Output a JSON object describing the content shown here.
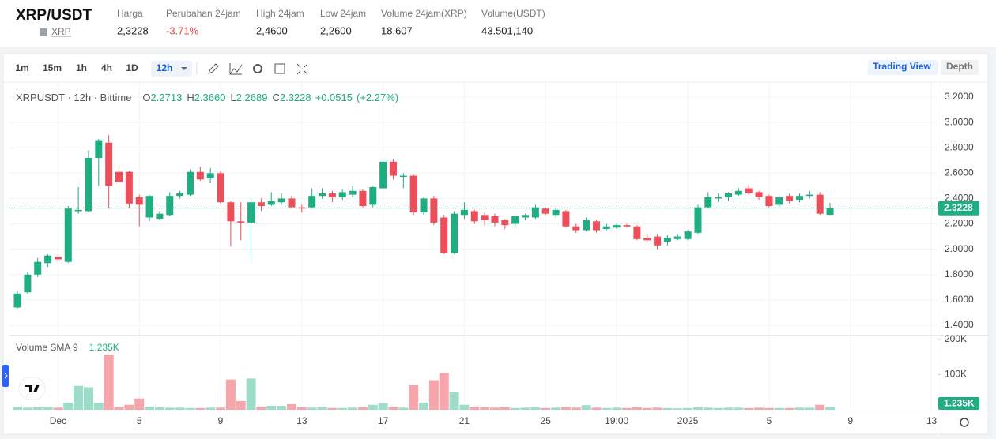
{
  "header": {
    "symbol": "XRP/USDT",
    "asset": "XRP",
    "stats": [
      {
        "label": "Harga",
        "value": "2,3228"
      },
      {
        "label": "Perubahan 24jam",
        "value": "-3.71%"
      },
      {
        "label": "High 24jam",
        "value": "2,4600"
      },
      {
        "label": "Low 24jam",
        "value": "2,2600"
      },
      {
        "label": "Volume 24jam(XRP)",
        "value": "18.607"
      },
      {
        "label": "Volume(USDT)",
        "value": "43.501,140"
      }
    ]
  },
  "toolbar": {
    "intervals": [
      "1m",
      "15m",
      "1h",
      "4h",
      "1D",
      "12h"
    ],
    "views": [
      "Trading View",
      "Depth"
    ]
  },
  "chart_data": [
    {
      "type": "candlestick",
      "title": "XRPUSDT · 12h · Bittime",
      "legend": [
        {
          "label": "O",
          "value": "2.2713"
        },
        {
          "label": "H",
          "value": "2.3660"
        },
        {
          "label": "L",
          "value": "2.2689"
        },
        {
          "label": "C",
          "value": "2.3228"
        },
        {
          "label": "",
          "value": "+0.0515"
        },
        {
          "label": "",
          "value": "(+2.27%)"
        }
      ],
      "up_color": "#1fae82",
      "down_color": "#ee4d5a",
      "categories": [
        null,
        null,
        null,
        null,
        "Dec",
        null,
        null,
        null,
        null,
        null,
        null,
        null,
        "5",
        null,
        null,
        null,
        null,
        null,
        null,
        null,
        "9",
        null,
        null,
        null,
        null,
        null,
        null,
        null,
        "13",
        null,
        null,
        null,
        null,
        null,
        null,
        null,
        "17",
        null,
        null,
        null,
        null,
        null,
        null,
        null,
        "21",
        null,
        null,
        null,
        null,
        null,
        null,
        null,
        "25",
        null,
        null,
        null,
        null,
        null,
        null,
        "19:00",
        null,
        null,
        null,
        null,
        null,
        null,
        "2025",
        null,
        null,
        null,
        null,
        null,
        null,
        null,
        "5",
        null,
        null,
        null,
        null,
        null,
        null,
        null,
        "9",
        null,
        null,
        null,
        null,
        null,
        null,
        null,
        "13"
      ],
      "open": [
        1.54,
        1.66,
        1.8,
        1.89,
        1.94,
        1.9,
        2.3,
        2.3,
        2.72,
        2.84,
        2.61,
        2.61,
        2.41,
        2.25,
        2.24,
        2.27,
        2.42,
        2.43,
        2.61,
        2.56,
        2.6,
        2.37,
        2.22,
        2.21,
        2.37,
        2.35,
        2.37,
        2.4,
        2.33,
        2.33,
        2.42,
        2.44,
        2.41,
        2.43,
        2.46,
        2.35,
        2.48,
        2.69,
        2.57,
        2.58,
        2.29,
        2.4,
        2.25,
        1.97,
        2.27,
        2.3,
        2.27,
        2.26,
        2.23,
        2.2,
        2.25,
        2.25,
        2.32,
        2.27,
        2.3,
        2.18,
        2.15,
        2.22,
        2.16,
        2.17,
        2.19,
        2.18,
        2.09,
        2.1,
        2.06,
        2.08,
        2.08,
        2.13,
        2.33,
        2.4,
        2.41,
        2.43,
        2.48,
        2.45,
        2.42,
        2.35,
        2.42,
        2.39,
        2.42,
        2.43,
        2.2713,
        null,
        null,
        null,
        null,
        null,
        null,
        null,
        null,
        null,
        null
      ],
      "high": [
        1.67,
        1.82,
        1.93,
        1.96,
        1.96,
        2.34,
        2.49,
        2.78,
        2.87,
        2.9,
        2.67,
        2.62,
        2.43,
        2.43,
        2.3,
        2.45,
        2.46,
        2.63,
        2.65,
        2.64,
        2.62,
        2.38,
        2.37,
        2.4,
        2.4,
        2.45,
        2.44,
        2.42,
        2.35,
        2.48,
        2.48,
        2.46,
        2.47,
        2.5,
        2.47,
        2.5,
        2.71,
        2.71,
        2.6,
        2.59,
        2.41,
        2.42,
        2.27,
        2.3,
        2.37,
        2.31,
        2.29,
        2.28,
        2.24,
        2.27,
        2.28,
        2.35,
        2.33,
        2.33,
        2.31,
        2.2,
        2.25,
        2.23,
        2.2,
        2.2,
        2.2,
        2.19,
        2.12,
        2.12,
        2.11,
        2.12,
        2.15,
        2.35,
        2.45,
        2.44,
        2.45,
        2.48,
        2.51,
        2.46,
        2.43,
        2.42,
        2.44,
        2.44,
        2.46,
        2.45,
        2.366,
        null,
        null,
        null,
        null,
        null,
        null,
        null,
        null,
        null,
        null
      ],
      "low": [
        1.53,
        1.65,
        1.78,
        1.86,
        1.9,
        1.89,
        2.28,
        2.29,
        2.5,
        2.32,
        2.52,
        2.32,
        2.18,
        2.22,
        2.23,
        2.26,
        2.4,
        2.42,
        2.54,
        2.52,
        2.36,
        2.02,
        2.07,
        1.91,
        2.3,
        2.34,
        2.35,
        2.32,
        2.29,
        2.32,
        2.4,
        2.37,
        2.39,
        2.41,
        2.33,
        2.33,
        2.47,
        2.55,
        2.48,
        2.27,
        2.27,
        2.19,
        1.96,
        1.96,
        2.24,
        2.2,
        2.19,
        2.18,
        2.16,
        2.16,
        2.23,
        2.24,
        2.27,
        2.25,
        2.17,
        2.13,
        2.14,
        2.13,
        2.15,
        2.16,
        2.17,
        2.07,
        2.05,
        2.0,
        2.03,
        2.07,
        2.07,
        2.12,
        2.32,
        2.37,
        2.38,
        2.42,
        2.43,
        2.39,
        2.33,
        2.33,
        2.36,
        2.37,
        2.4,
        2.27,
        2.2689,
        null,
        null,
        null,
        null,
        null,
        null,
        null,
        null,
        null,
        null
      ],
      "close": [
        1.65,
        1.8,
        1.9,
        1.95,
        1.92,
        2.32,
        2.31,
        2.72,
        2.86,
        2.5,
        2.53,
        2.36,
        2.35,
        2.42,
        2.28,
        2.42,
        2.44,
        2.61,
        2.55,
        2.6,
        2.37,
        2.22,
        2.21,
        2.37,
        2.34,
        2.38,
        2.4,
        2.33,
        2.32,
        2.42,
        2.44,
        2.41,
        2.45,
        2.46,
        2.34,
        2.49,
        2.69,
        2.58,
        2.58,
        2.29,
        2.4,
        2.21,
        1.97,
        2.28,
        2.31,
        2.22,
        2.23,
        2.21,
        2.19,
        2.26,
        2.27,
        2.33,
        2.28,
        2.31,
        2.18,
        2.15,
        2.23,
        2.15,
        2.18,
        2.19,
        2.18,
        2.08,
        2.07,
        2.03,
        2.09,
        2.1,
        2.14,
        2.33,
        2.41,
        2.41,
        2.44,
        2.46,
        2.44,
        2.41,
        2.34,
        2.41,
        2.38,
        2.42,
        2.43,
        2.28,
        2.3228,
        null,
        null,
        null,
        null,
        null,
        null,
        null,
        null,
        null,
        null
      ],
      "ylim": [
        1.325,
        3.312
      ],
      "yticks": [
        {
          "value": 3.2,
          "label": "3.2000"
        },
        {
          "value": 3.0,
          "label": "3.0000"
        },
        {
          "value": 2.8,
          "label": "2.8000"
        },
        {
          "value": 2.6,
          "label": "2.6000"
        },
        {
          "value": 2.4,
          "label": "2.4000"
        },
        {
          "value": 2.2,
          "label": "2.2000"
        },
        {
          "value": 2.0,
          "label": "2.0000"
        },
        {
          "value": 1.8,
          "label": "1.8000"
        },
        {
          "value": 1.6,
          "label": "1.6000"
        },
        {
          "value": 1.4,
          "label": "1.4000"
        }
      ],
      "grid": true
    },
    {
      "type": "bar",
      "title": "Volume SMA 9",
      "indicator": "1.235K",
      "up_color": "#9ddcc8",
      "down_color": "#f6a6ab",
      "values": [
        8000,
        6000,
        7000,
        8000,
        6000,
        20000,
        68000,
        64000,
        20000,
        157000,
        7000,
        14000,
        32000,
        9000,
        7000,
        6000,
        6000,
        5000,
        5000,
        6000,
        6000,
        86000,
        25000,
        89000,
        9000,
        11000,
        11000,
        16000,
        7000,
        6000,
        7000,
        5000,
        5000,
        6000,
        7000,
        14000,
        18000,
        9000,
        6000,
        70000,
        20000,
        84000,
        105000,
        50000,
        14000,
        9000,
        7000,
        6000,
        7000,
        5000,
        6000,
        7000,
        5000,
        6000,
        7000,
        6000,
        13000,
        6000,
        5000,
        6000,
        5000,
        7000,
        5000,
        6000,
        5000,
        4000,
        5000,
        7000,
        6000,
        5000,
        6000,
        6000,
        5000,
        6000,
        5000,
        5000,
        5000,
        6000,
        6000,
        14000,
        7000,
        null,
        null,
        null,
        null,
        null,
        null,
        null,
        null,
        null,
        null
      ],
      "ylim": [
        0,
        211000
      ],
      "yticks": [
        {
          "value": 200000,
          "label": "200K"
        },
        {
          "value": 100000,
          "label": "100K"
        }
      ]
    }
  ]
}
